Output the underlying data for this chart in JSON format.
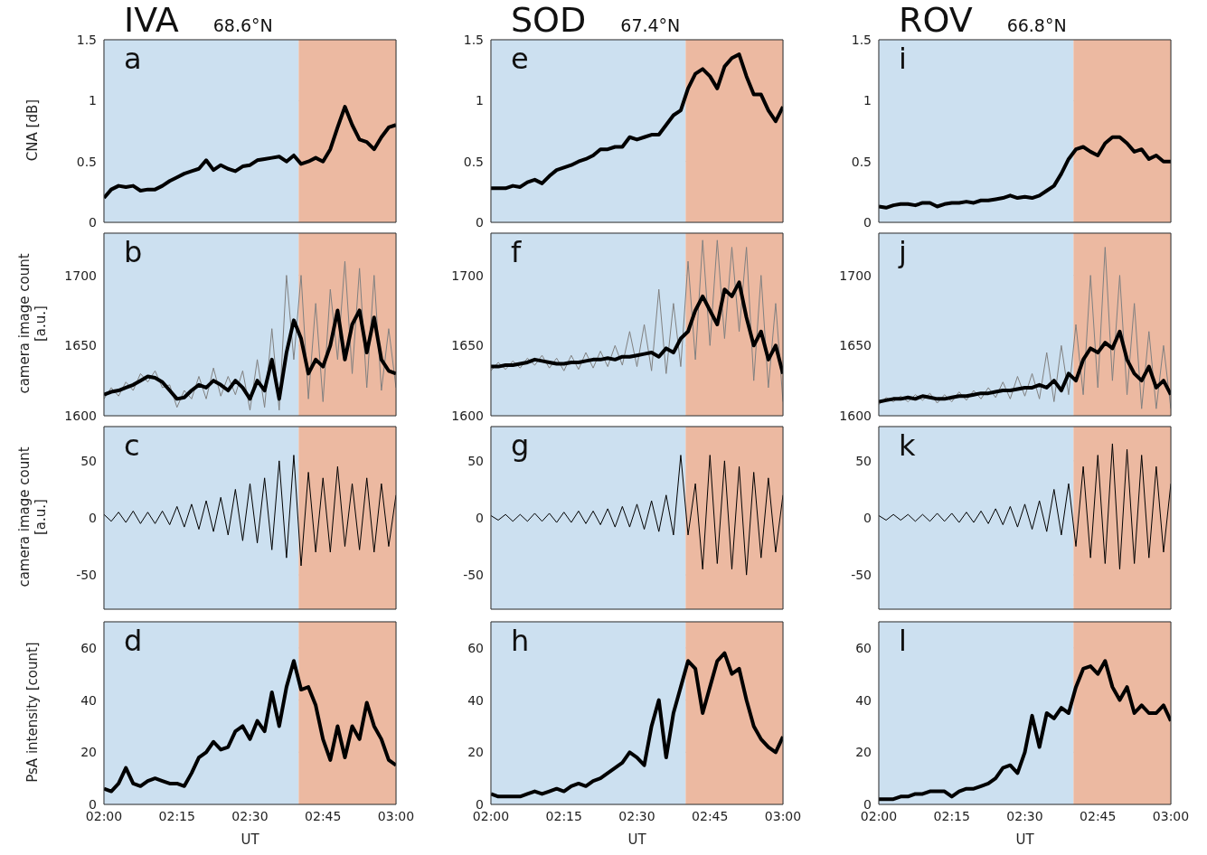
{
  "chart_data": [
    {
      "type": "line",
      "title": "IVA",
      "subtitle": "68.6°N",
      "ylabel": "CNA [dB]",
      "annotations": [
        "a"
      ],
      "tick_labels": "y",
      "grid": true,
      "marker": "none",
      "line_style": "solid",
      "xlim": [
        2,
        3
      ],
      "xticks": [
        {
          "value": 2,
          "label": null
        },
        {
          "value": 2.25,
          "label": null
        },
        {
          "value": 2.5,
          "label": null
        },
        {
          "value": 2.75,
          "label": null
        },
        {
          "value": 3,
          "label": null
        }
      ],
      "ylim": [
        0,
        1.5
      ],
      "yticks": [
        0,
        0.5,
        1,
        1.5
      ],
      "bands": [
        {
          "axis": "x",
          "from": 2,
          "to": 2.6667,
          "color": "#cce0f0"
        },
        {
          "axis": "x",
          "from": 2.6667,
          "to": 3,
          "color": "#ecb9a1"
        }
      ],
      "x": [
        2,
        2.025,
        2.05,
        2.075,
        2.1,
        2.125,
        2.15,
        2.175,
        2.2,
        2.225,
        2.25,
        2.275,
        2.3,
        2.325,
        2.35,
        2.375,
        2.4,
        2.425,
        2.45,
        2.475,
        2.5,
        2.525,
        2.55,
        2.575,
        2.6,
        2.625,
        2.65,
        2.675,
        2.7,
        2.725,
        2.75,
        2.775,
        2.8,
        2.825,
        2.85,
        2.875,
        2.9,
        2.925,
        2.95,
        2.975,
        3
      ],
      "series": [
        {
          "color": "#000000",
          "values": [
            0.2,
            0.27,
            0.3,
            0.29,
            0.3,
            0.26,
            0.27,
            0.27,
            0.3,
            0.34,
            0.37,
            0.4,
            0.42,
            0.44,
            0.51,
            0.43,
            0.47,
            0.44,
            0.42,
            0.46,
            0.47,
            0.51,
            0.52,
            0.53,
            0.54,
            0.5,
            0.55,
            0.48,
            0.5,
            0.53,
            0.5,
            0.6,
            0.78,
            0.95,
            0.8,
            0.68,
            0.66,
            0.6,
            0.7,
            0.78,
            0.8
          ]
        }
      ]
    },
    {
      "type": "line",
      "title": "SOD",
      "subtitle": "67.4°N",
      "annotations": [
        "e"
      ],
      "tick_labels": "y",
      "grid": true,
      "marker": "none",
      "line_style": "solid",
      "xlim": [
        2,
        3
      ],
      "xticks": [
        {
          "value": 2,
          "label": null
        },
        {
          "value": 2.25,
          "label": null
        },
        {
          "value": 2.5,
          "label": null
        },
        {
          "value": 2.75,
          "label": null
        },
        {
          "value": 3,
          "label": null
        }
      ],
      "ylim": [
        0,
        1.5
      ],
      "yticks": [
        0,
        0.5,
        1,
        1.5
      ],
      "bands": [
        {
          "axis": "x",
          "from": 2,
          "to": 2.6667,
          "color": "#cce0f0"
        },
        {
          "axis": "x",
          "from": 2.6667,
          "to": 3,
          "color": "#ecb9a1"
        }
      ],
      "x": [
        2,
        2.025,
        2.05,
        2.075,
        2.1,
        2.125,
        2.15,
        2.175,
        2.2,
        2.225,
        2.25,
        2.275,
        2.3,
        2.325,
        2.35,
        2.375,
        2.4,
        2.425,
        2.45,
        2.475,
        2.5,
        2.525,
        2.55,
        2.575,
        2.6,
        2.625,
        2.65,
        2.675,
        2.7,
        2.725,
        2.75,
        2.775,
        2.8,
        2.825,
        2.85,
        2.875,
        2.9,
        2.925,
        2.95,
        2.975,
        3
      ],
      "series": [
        {
          "color": "#000000",
          "values": [
            0.28,
            0.28,
            0.28,
            0.3,
            0.29,
            0.33,
            0.35,
            0.32,
            0.38,
            0.43,
            0.45,
            0.47,
            0.5,
            0.52,
            0.55,
            0.6,
            0.6,
            0.62,
            0.62,
            0.7,
            0.68,
            0.7,
            0.72,
            0.72,
            0.8,
            0.88,
            0.92,
            1.1,
            1.22,
            1.26,
            1.2,
            1.1,
            1.28,
            1.35,
            1.38,
            1.2,
            1.05,
            1.05,
            0.92,
            0.83,
            0.95
          ]
        }
      ]
    },
    {
      "type": "line",
      "title": "ROV",
      "subtitle": "66.8°N",
      "annotations": [
        "i"
      ],
      "tick_labels": "y",
      "grid": true,
      "marker": "none",
      "line_style": "solid",
      "xlim": [
        2,
        3
      ],
      "xticks": [
        {
          "value": 2,
          "label": null
        },
        {
          "value": 2.25,
          "label": null
        },
        {
          "value": 2.5,
          "label": null
        },
        {
          "value": 2.75,
          "label": null
        },
        {
          "value": 3,
          "label": null
        }
      ],
      "ylim": [
        0,
        1.5
      ],
      "yticks": [
        0,
        0.5,
        1,
        1.5
      ],
      "bands": [
        {
          "axis": "x",
          "from": 2,
          "to": 2.6667,
          "color": "#cce0f0"
        },
        {
          "axis": "x",
          "from": 2.6667,
          "to": 3,
          "color": "#ecb9a1"
        }
      ],
      "x": [
        2,
        2.025,
        2.05,
        2.075,
        2.1,
        2.125,
        2.15,
        2.175,
        2.2,
        2.225,
        2.25,
        2.275,
        2.3,
        2.325,
        2.35,
        2.375,
        2.4,
        2.425,
        2.45,
        2.475,
        2.5,
        2.525,
        2.55,
        2.575,
        2.6,
        2.625,
        2.65,
        2.675,
        2.7,
        2.725,
        2.75,
        2.775,
        2.8,
        2.825,
        2.85,
        2.875,
        2.9,
        2.925,
        2.95,
        2.975,
        3
      ],
      "series": [
        {
          "color": "#000000",
          "values": [
            0.13,
            0.12,
            0.14,
            0.15,
            0.15,
            0.14,
            0.16,
            0.16,
            0.13,
            0.15,
            0.16,
            0.16,
            0.17,
            0.16,
            0.18,
            0.18,
            0.19,
            0.2,
            0.22,
            0.2,
            0.21,
            0.2,
            0.22,
            0.26,
            0.3,
            0.4,
            0.52,
            0.6,
            0.62,
            0.58,
            0.55,
            0.65,
            0.7,
            0.7,
            0.65,
            0.58,
            0.6,
            0.52,
            0.55,
            0.5,
            0.5
          ]
        }
      ]
    },
    {
      "type": "line",
      "ylabel": "camera image count [a.u.]",
      "annotations": [
        "b"
      ],
      "tick_labels": "y",
      "grid": true,
      "marker": "none",
      "line_style": "solid",
      "xlim": [
        2,
        3
      ],
      "xticks": [
        {
          "value": 2,
          "label": null
        },
        {
          "value": 2.25,
          "label": null
        },
        {
          "value": 2.5,
          "label": null
        },
        {
          "value": 2.75,
          "label": null
        },
        {
          "value": 3,
          "label": null
        }
      ],
      "ylim": [
        1600,
        1730
      ],
      "yticks": [
        1600,
        1650,
        1700
      ],
      "bands": [
        {
          "axis": "x",
          "from": 2,
          "to": 2.6667,
          "color": "#cce0f0"
        },
        {
          "axis": "x",
          "from": 2.6667,
          "to": 3,
          "color": "#ecb9a1"
        }
      ],
      "x": [
        2,
        2.025,
        2.05,
        2.075,
        2.1,
        2.125,
        2.15,
        2.175,
        2.2,
        2.225,
        2.25,
        2.275,
        2.3,
        2.325,
        2.35,
        2.375,
        2.4,
        2.425,
        2.45,
        2.475,
        2.5,
        2.525,
        2.55,
        2.575,
        2.6,
        2.625,
        2.65,
        2.675,
        2.7,
        2.725,
        2.75,
        2.775,
        2.8,
        2.825,
        2.85,
        2.875,
        2.9,
        2.925,
        2.95,
        2.975,
        3
      ],
      "series": [
        {
          "color": "#808080",
          "values": [
            1612,
            1620,
            1614,
            1624,
            1618,
            1630,
            1624,
            1632,
            1620,
            1622,
            1606,
            1618,
            1612,
            1628,
            1612,
            1634,
            1614,
            1628,
            1615,
            1632,
            1604,
            1640,
            1606,
            1662,
            1604,
            1700,
            1640,
            1700,
            1612,
            1680,
            1610,
            1690,
            1640,
            1710,
            1630,
            1705,
            1620,
            1700,
            1618,
            1662,
            1620
          ]
        },
        {
          "color": "#000000",
          "values": [
            1615,
            1617,
            1618,
            1620,
            1622,
            1625,
            1628,
            1627,
            1624,
            1618,
            1612,
            1613,
            1618,
            1622,
            1620,
            1625,
            1622,
            1618,
            1625,
            1620,
            1612,
            1625,
            1618,
            1640,
            1612,
            1645,
            1668,
            1655,
            1630,
            1640,
            1635,
            1650,
            1675,
            1640,
            1665,
            1675,
            1645,
            1670,
            1640,
            1632,
            1630
          ]
        }
      ]
    },
    {
      "type": "line",
      "annotations": [
        "f"
      ],
      "tick_labels": "y",
      "grid": true,
      "marker": "none",
      "line_style": "solid",
      "xlim": [
        2,
        3
      ],
      "xticks": [
        {
          "value": 2,
          "label": null
        },
        {
          "value": 2.25,
          "label": null
        },
        {
          "value": 2.5,
          "label": null
        },
        {
          "value": 2.75,
          "label": null
        },
        {
          "value": 3,
          "label": null
        }
      ],
      "ylim": [
        1600,
        1730
      ],
      "yticks": [
        1600,
        1650,
        1700
      ],
      "bands": [
        {
          "axis": "x",
          "from": 2,
          "to": 2.6667,
          "color": "#cce0f0"
        },
        {
          "axis": "x",
          "from": 2.6667,
          "to": 3,
          "color": "#ecb9a1"
        }
      ],
      "x": [
        2,
        2.025,
        2.05,
        2.075,
        2.1,
        2.125,
        2.15,
        2.175,
        2.2,
        2.225,
        2.25,
        2.275,
        2.3,
        2.325,
        2.35,
        2.375,
        2.4,
        2.425,
        2.45,
        2.475,
        2.5,
        2.525,
        2.55,
        2.575,
        2.6,
        2.625,
        2.65,
        2.675,
        2.7,
        2.725,
        2.75,
        2.775,
        2.8,
        2.825,
        2.85,
        2.875,
        2.9,
        2.925,
        2.95,
        2.975,
        3
      ],
      "series": [
        {
          "color": "#808080",
          "values": [
            1632,
            1638,
            1633,
            1639,
            1634,
            1641,
            1636,
            1643,
            1634,
            1641,
            1632,
            1643,
            1633,
            1645,
            1634,
            1646,
            1635,
            1650,
            1636,
            1660,
            1635,
            1665,
            1632,
            1690,
            1630,
            1680,
            1635,
            1710,
            1640,
            1725,
            1650,
            1725,
            1655,
            1720,
            1660,
            1720,
            1625,
            1700,
            1620,
            1680,
            1610
          ]
        },
        {
          "color": "#000000",
          "values": [
            1635,
            1635,
            1636,
            1636,
            1637,
            1638,
            1640,
            1639,
            1638,
            1637,
            1637,
            1638,
            1638,
            1639,
            1640,
            1640,
            1641,
            1640,
            1642,
            1642,
            1643,
            1644,
            1645,
            1642,
            1648,
            1645,
            1655,
            1660,
            1675,
            1685,
            1675,
            1665,
            1690,
            1685,
            1695,
            1670,
            1650,
            1660,
            1640,
            1650,
            1630
          ]
        }
      ]
    },
    {
      "type": "line",
      "annotations": [
        "j"
      ],
      "tick_labels": "y",
      "grid": true,
      "marker": "none",
      "line_style": "solid",
      "xlim": [
        2,
        3
      ],
      "xticks": [
        {
          "value": 2,
          "label": null
        },
        {
          "value": 2.25,
          "label": null
        },
        {
          "value": 2.5,
          "label": null
        },
        {
          "value": 2.75,
          "label": null
        },
        {
          "value": 3,
          "label": null
        }
      ],
      "ylim": [
        1600,
        1730
      ],
      "yticks": [
        1600,
        1650,
        1700
      ],
      "bands": [
        {
          "axis": "x",
          "from": 2,
          "to": 2.6667,
          "color": "#cce0f0"
        },
        {
          "axis": "x",
          "from": 2.6667,
          "to": 3,
          "color": "#ecb9a1"
        }
      ],
      "x": [
        2,
        2.025,
        2.05,
        2.075,
        2.1,
        2.125,
        2.15,
        2.175,
        2.2,
        2.225,
        2.25,
        2.275,
        2.3,
        2.325,
        2.35,
        2.375,
        2.4,
        2.425,
        2.45,
        2.475,
        2.5,
        2.525,
        2.55,
        2.575,
        2.6,
        2.625,
        2.65,
        2.675,
        2.7,
        2.725,
        2.75,
        2.775,
        2.8,
        2.825,
        2.85,
        2.875,
        2.9,
        2.925,
        2.95,
        2.975,
        3
      ],
      "series": [
        {
          "color": "#808080",
          "values": [
            1608,
            1613,
            1610,
            1614,
            1610,
            1615,
            1611,
            1616,
            1609,
            1615,
            1610,
            1617,
            1611,
            1618,
            1612,
            1620,
            1613,
            1624,
            1612,
            1628,
            1614,
            1630,
            1612,
            1645,
            1610,
            1650,
            1615,
            1665,
            1615,
            1700,
            1620,
            1720,
            1625,
            1700,
            1615,
            1680,
            1605,
            1660,
            1605,
            1650,
            1605
          ]
        },
        {
          "color": "#000000",
          "values": [
            1610,
            1611,
            1612,
            1612,
            1613,
            1612,
            1614,
            1613,
            1612,
            1612,
            1613,
            1614,
            1614,
            1615,
            1616,
            1616,
            1617,
            1618,
            1618,
            1619,
            1620,
            1620,
            1622,
            1620,
            1625,
            1618,
            1630,
            1625,
            1640,
            1648,
            1645,
            1652,
            1648,
            1660,
            1640,
            1630,
            1625,
            1635,
            1620,
            1625,
            1615
          ]
        }
      ]
    },
    {
      "type": "line",
      "ylabel": "camera image count [a.u.]",
      "annotations": [
        "c"
      ],
      "tick_labels": "y",
      "grid": true,
      "marker": "none",
      "line_style": "solid",
      "xlim": [
        2,
        3
      ],
      "xticks": [
        {
          "value": 2,
          "label": null
        },
        {
          "value": 2.25,
          "label": null
        },
        {
          "value": 2.5,
          "label": null
        },
        {
          "value": 2.75,
          "label": null
        },
        {
          "value": 3,
          "label": null
        }
      ],
      "ylim": [
        -80,
        80
      ],
      "yticks": [
        -50,
        0,
        50
      ],
      "bands": [
        {
          "axis": "x",
          "from": 2,
          "to": 2.6667,
          "color": "#cce0f0"
        },
        {
          "axis": "x",
          "from": 2.6667,
          "to": 3,
          "color": "#ecb9a1"
        }
      ],
      "x": [
        2,
        2.025,
        2.05,
        2.075,
        2.1,
        2.125,
        2.15,
        2.175,
        2.2,
        2.225,
        2.25,
        2.275,
        2.3,
        2.325,
        2.35,
        2.375,
        2.4,
        2.425,
        2.45,
        2.475,
        2.5,
        2.525,
        2.55,
        2.575,
        2.6,
        2.625,
        2.65,
        2.675,
        2.7,
        2.725,
        2.75,
        2.775,
        2.8,
        2.825,
        2.85,
        2.875,
        2.9,
        2.925,
        2.95,
        2.975,
        3
      ],
      "series": [
        {
          "color": "#000000",
          "values": [
            3,
            -3,
            5,
            -4,
            6,
            -5,
            5,
            -5,
            6,
            -6,
            10,
            -8,
            12,
            -10,
            15,
            -12,
            18,
            -15,
            25,
            -20,
            30,
            -22,
            35,
            -28,
            50,
            -35,
            55,
            -42,
            40,
            -30,
            35,
            -30,
            45,
            -25,
            30,
            -28,
            35,
            -30,
            30,
            -25,
            20
          ]
        }
      ]
    },
    {
      "type": "line",
      "annotations": [
        "g"
      ],
      "tick_labels": "y",
      "grid": true,
      "marker": "none",
      "line_style": "solid",
      "xlim": [
        2,
        3
      ],
      "xticks": [
        {
          "value": 2,
          "label": null
        },
        {
          "value": 2.25,
          "label": null
        },
        {
          "value": 2.5,
          "label": null
        },
        {
          "value": 2.75,
          "label": null
        },
        {
          "value": 3,
          "label": null
        }
      ],
      "ylim": [
        -80,
        80
      ],
      "yticks": [
        -50,
        0,
        50
      ],
      "bands": [
        {
          "axis": "x",
          "from": 2,
          "to": 2.6667,
          "color": "#cce0f0"
        },
        {
          "axis": "x",
          "from": 2.6667,
          "to": 3,
          "color": "#ecb9a1"
        }
      ],
      "x": [
        2,
        2.025,
        2.05,
        2.075,
        2.1,
        2.125,
        2.15,
        2.175,
        2.2,
        2.225,
        2.25,
        2.275,
        2.3,
        2.325,
        2.35,
        2.375,
        2.4,
        2.425,
        2.45,
        2.475,
        2.5,
        2.525,
        2.55,
        2.575,
        2.6,
        2.625,
        2.65,
        2.675,
        2.7,
        2.725,
        2.75,
        2.775,
        2.8,
        2.825,
        2.85,
        2.875,
        2.9,
        2.925,
        2.95,
        2.975,
        3
      ],
      "series": [
        {
          "color": "#000000",
          "values": [
            2,
            -2,
            3,
            -3,
            3,
            -3,
            4,
            -3,
            4,
            -4,
            5,
            -4,
            6,
            -5,
            6,
            -6,
            8,
            -8,
            10,
            -8,
            12,
            -10,
            15,
            -12,
            20,
            -15,
            55,
            -15,
            30,
            -45,
            55,
            -40,
            50,
            -45,
            45,
            -50,
            40,
            -35,
            35,
            -30,
            20
          ]
        }
      ]
    },
    {
      "type": "line",
      "annotations": [
        "k"
      ],
      "tick_labels": "y",
      "grid": true,
      "marker": "none",
      "line_style": "solid",
      "xlim": [
        2,
        3
      ],
      "xticks": [
        {
          "value": 2,
          "label": null
        },
        {
          "value": 2.25,
          "label": null
        },
        {
          "value": 2.5,
          "label": null
        },
        {
          "value": 2.75,
          "label": null
        },
        {
          "value": 3,
          "label": null
        }
      ],
      "ylim": [
        -80,
        80
      ],
      "yticks": [
        -50,
        0,
        50
      ],
      "bands": [
        {
          "axis": "x",
          "from": 2,
          "to": 2.6667,
          "color": "#cce0f0"
        },
        {
          "axis": "x",
          "from": 2.6667,
          "to": 3,
          "color": "#ecb9a1"
        }
      ],
      "x": [
        2,
        2.025,
        2.05,
        2.075,
        2.1,
        2.125,
        2.15,
        2.175,
        2.2,
        2.225,
        2.25,
        2.275,
        2.3,
        2.325,
        2.35,
        2.375,
        2.4,
        2.425,
        2.45,
        2.475,
        2.5,
        2.525,
        2.55,
        2.575,
        2.6,
        2.625,
        2.65,
        2.675,
        2.7,
        2.725,
        2.75,
        2.775,
        2.8,
        2.825,
        2.85,
        2.875,
        2.9,
        2.925,
        2.95,
        2.975,
        3
      ],
      "series": [
        {
          "color": "#000000",
          "values": [
            2,
            -2,
            3,
            -2,
            3,
            -3,
            3,
            -3,
            4,
            -3,
            4,
            -4,
            5,
            -4,
            6,
            -5,
            8,
            -6,
            10,
            -8,
            12,
            -10,
            15,
            -12,
            25,
            -15,
            30,
            -25,
            45,
            -35,
            55,
            -40,
            65,
            -45,
            60,
            -40,
            55,
            -35,
            45,
            -30,
            30
          ]
        }
      ]
    },
    {
      "type": "line",
      "ylabel": "PsA intensity [count]",
      "xlabel": "UT",
      "annotations": [
        "d"
      ],
      "grid": true,
      "marker": "none",
      "line_style": "solid",
      "xlim": [
        2,
        3
      ],
      "xticks": [
        {
          "value": 2,
          "label": "02:00"
        },
        {
          "value": 2.25,
          "label": "02:15"
        },
        {
          "value": 2.5,
          "label": "02:30"
        },
        {
          "value": 2.75,
          "label": "02:45"
        },
        {
          "value": 3,
          "label": "03:00"
        }
      ],
      "ylim": [
        0,
        70
      ],
      "yticks": [
        0,
        20,
        40,
        60
      ],
      "bands": [
        {
          "axis": "x",
          "from": 2,
          "to": 2.6667,
          "color": "#cce0f0"
        },
        {
          "axis": "x",
          "from": 2.6667,
          "to": 3,
          "color": "#ecb9a1"
        }
      ],
      "x": [
        2,
        2.025,
        2.05,
        2.075,
        2.1,
        2.125,
        2.15,
        2.175,
        2.2,
        2.225,
        2.25,
        2.275,
        2.3,
        2.325,
        2.35,
        2.375,
        2.4,
        2.425,
        2.45,
        2.475,
        2.5,
        2.525,
        2.55,
        2.575,
        2.6,
        2.625,
        2.65,
        2.675,
        2.7,
        2.725,
        2.75,
        2.775,
        2.8,
        2.825,
        2.85,
        2.875,
        2.9,
        2.925,
        2.95,
        2.975,
        3
      ],
      "series": [
        {
          "color": "#000000",
          "values": [
            6,
            5,
            8,
            14,
            8,
            7,
            9,
            10,
            9,
            8,
            8,
            7,
            12,
            18,
            20,
            24,
            21,
            22,
            28,
            30,
            25,
            32,
            28,
            43,
            30,
            45,
            55,
            44,
            45,
            38,
            25,
            17,
            30,
            18,
            30,
            25,
            39,
            30,
            25,
            17,
            15
          ]
        }
      ]
    },
    {
      "type": "line",
      "xlabel": "UT",
      "annotations": [
        "h"
      ],
      "grid": true,
      "marker": "none",
      "line_style": "solid",
      "xlim": [
        2,
        3
      ],
      "xticks": [
        {
          "value": 2,
          "label": "02:00"
        },
        {
          "value": 2.25,
          "label": "02:15"
        },
        {
          "value": 2.5,
          "label": "02:30"
        },
        {
          "value": 2.75,
          "label": "02:45"
        },
        {
          "value": 3,
          "label": "03:00"
        }
      ],
      "ylim": [
        0,
        70
      ],
      "yticks": [
        0,
        20,
        40,
        60
      ],
      "bands": [
        {
          "axis": "x",
          "from": 2,
          "to": 2.6667,
          "color": "#cce0f0"
        },
        {
          "axis": "x",
          "from": 2.6667,
          "to": 3,
          "color": "#ecb9a1"
        }
      ],
      "x": [
        2,
        2.025,
        2.05,
        2.075,
        2.1,
        2.125,
        2.15,
        2.175,
        2.2,
        2.225,
        2.25,
        2.275,
        2.3,
        2.325,
        2.35,
        2.375,
        2.4,
        2.425,
        2.45,
        2.475,
        2.5,
        2.525,
        2.55,
        2.575,
        2.6,
        2.625,
        2.65,
        2.675,
        2.7,
        2.725,
        2.75,
        2.775,
        2.8,
        2.825,
        2.85,
        2.875,
        2.9,
        2.925,
        2.95,
        2.975,
        3
      ],
      "series": [
        {
          "color": "#000000",
          "values": [
            4,
            3,
            3,
            3,
            3,
            4,
            5,
            4,
            5,
            6,
            5,
            7,
            8,
            7,
            9,
            10,
            12,
            14,
            16,
            20,
            18,
            15,
            30,
            40,
            18,
            35,
            45,
            55,
            52,
            35,
            45,
            55,
            58,
            50,
            52,
            40,
            30,
            25,
            22,
            20,
            26
          ]
        }
      ]
    },
    {
      "type": "line",
      "xlabel": "UT",
      "annotations": [
        "l"
      ],
      "grid": true,
      "marker": "none",
      "line_style": "solid",
      "xlim": [
        2,
        3
      ],
      "xticks": [
        {
          "value": 2,
          "label": "02:00"
        },
        {
          "value": 2.25,
          "label": "02:15"
        },
        {
          "value": 2.5,
          "label": "02:30"
        },
        {
          "value": 2.75,
          "label": "02:45"
        },
        {
          "value": 3,
          "label": "03:00"
        }
      ],
      "ylim": [
        0,
        70
      ],
      "yticks": [
        0,
        20,
        40,
        60
      ],
      "bands": [
        {
          "axis": "x",
          "from": 2,
          "to": 2.6667,
          "color": "#cce0f0"
        },
        {
          "axis": "x",
          "from": 2.6667,
          "to": 3,
          "color": "#ecb9a1"
        }
      ],
      "x": [
        2,
        2.025,
        2.05,
        2.075,
        2.1,
        2.125,
        2.15,
        2.175,
        2.2,
        2.225,
        2.25,
        2.275,
        2.3,
        2.325,
        2.35,
        2.375,
        2.4,
        2.425,
        2.45,
        2.475,
        2.5,
        2.525,
        2.55,
        2.575,
        2.6,
        2.625,
        2.65,
        2.675,
        2.7,
        2.725,
        2.75,
        2.775,
        2.8,
        2.825,
        2.85,
        2.875,
        2.9,
        2.925,
        2.95,
        2.975,
        3
      ],
      "series": [
        {
          "color": "#000000",
          "values": [
            2,
            2,
            2,
            3,
            3,
            4,
            4,
            5,
            5,
            5,
            3,
            5,
            6,
            6,
            7,
            8,
            10,
            14,
            15,
            12,
            20,
            34,
            22,
            35,
            33,
            37,
            35,
            45,
            52,
            53,
            50,
            55,
            45,
            40,
            45,
            35,
            38,
            35,
            35,
            38,
            32
          ]
        }
      ]
    }
  ]
}
